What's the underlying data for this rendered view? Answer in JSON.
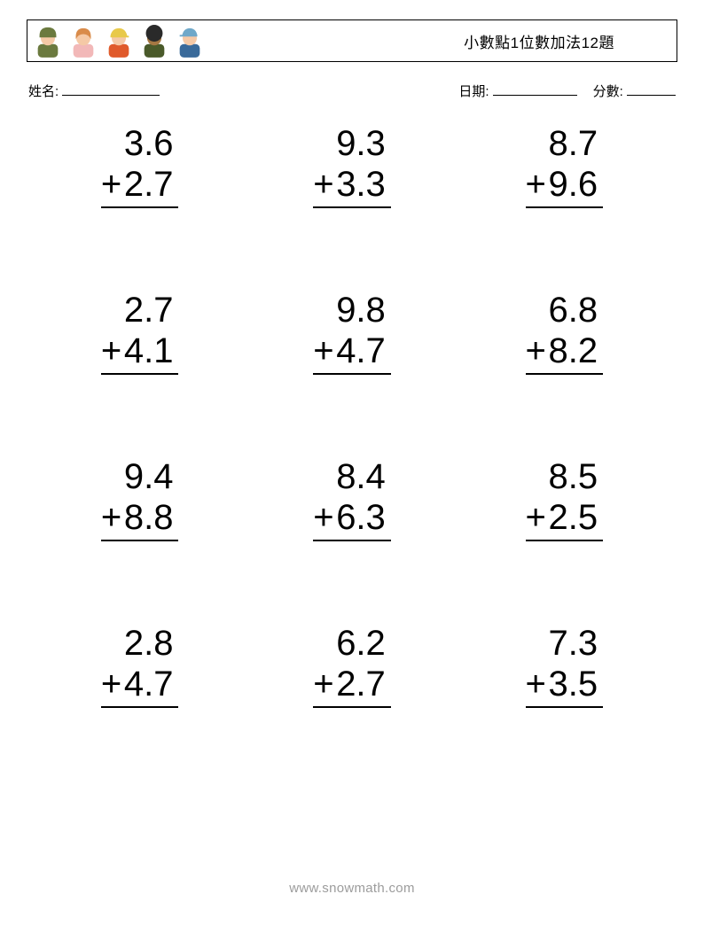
{
  "header": {
    "title": "小數點1位數加法12題",
    "avatars": [
      {
        "name": "avatar-1",
        "shirt": "#6b7a3f",
        "head": "#f5c9a6",
        "hat": "#6b7a3f",
        "hatStyle": "helmet"
      },
      {
        "name": "avatar-2",
        "shirt": "#f2b8b8",
        "head": "#f5c9a6",
        "hat": "#d98b4a",
        "hatStyle": "hair"
      },
      {
        "name": "avatar-3",
        "shirt": "#e05a2b",
        "head": "#f5c9a6",
        "hat": "#e8c94a",
        "hatStyle": "cap"
      },
      {
        "name": "avatar-4",
        "shirt": "#4a5a2a",
        "head": "#a67843",
        "hat": "#2a2a2a",
        "hatStyle": "afro"
      },
      {
        "name": "avatar-5",
        "shirt": "#3a6a9a",
        "head": "#f5c9a6",
        "hat": "#6fa8c9",
        "hatStyle": "brimcap"
      }
    ]
  },
  "info": {
    "name_label": "姓名:",
    "date_label": "日期:",
    "score_label": "分數:"
  },
  "operator": "+",
  "problems": [
    {
      "a": "3.6",
      "b": "2.7"
    },
    {
      "a": "9.3",
      "b": "3.3"
    },
    {
      "a": "8.7",
      "b": "9.6"
    },
    {
      "a": "2.7",
      "b": "4.1"
    },
    {
      "a": "9.8",
      "b": "4.7"
    },
    {
      "a": "6.8",
      "b": "8.2"
    },
    {
      "a": "9.4",
      "b": "8.8"
    },
    {
      "a": "8.4",
      "b": "6.3"
    },
    {
      "a": "8.5",
      "b": "2.5"
    },
    {
      "a": "2.8",
      "b": "4.7"
    },
    {
      "a": "6.2",
      "b": "2.7"
    },
    {
      "a": "7.3",
      "b": "3.5"
    }
  ],
  "footer": {
    "watermark": "www.snowmath.com"
  },
  "colors": {
    "text": "#000000",
    "background": "#ffffff",
    "watermark": "#9c9c9c",
    "border": "#000000"
  }
}
